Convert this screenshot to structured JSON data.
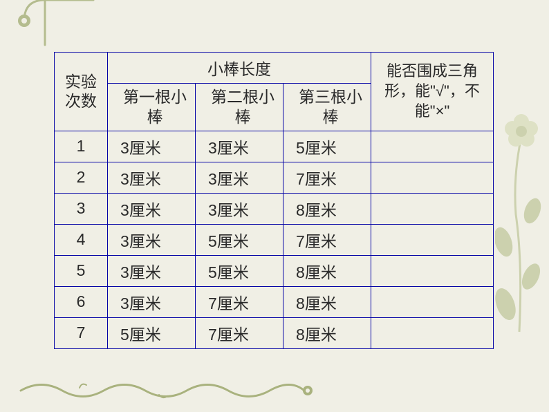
{
  "table": {
    "border_color": "#0504a6",
    "text_color": "#2a2a2a",
    "background_color": "#f0efe5",
    "font_size": 23,
    "header": {
      "experiment_count": "实验次数",
      "stick_length": "小棒长度",
      "stick1": "第一根小棒",
      "stick2": "第二根小棒",
      "stick3": "第三根小棒",
      "result": "能否围成三角形，能\"√\"，不能\"×\""
    },
    "rows": [
      {
        "num": "1",
        "s1": "3厘米",
        "s2": "3厘米",
        "s3": "5厘米",
        "result": ""
      },
      {
        "num": "2",
        "s1": "3厘米",
        "s2": "3厘米",
        "s3": "7厘米",
        "result": ""
      },
      {
        "num": "3",
        "s1": "3厘米",
        "s2": "3厘米",
        "s3": "8厘米",
        "result": ""
      },
      {
        "num": "4",
        "s1": "3厘米",
        "s2": "5厘米",
        "s3": "7厘米",
        "result": ""
      },
      {
        "num": "5",
        "s1": "3厘米",
        "s2": "5厘米",
        "s3": "8厘米",
        "result": ""
      },
      {
        "num": "6",
        "s1": "3厘米",
        "s2": "7厘米",
        "s3": "8厘米",
        "result": ""
      },
      {
        "num": "7",
        "s1": "5厘米",
        "s2": "7厘米",
        "s3": "8厘米",
        "result": ""
      }
    ]
  },
  "decorations": {
    "vine_color": "#7a8a3a",
    "flower_color": "#8b9b4a",
    "flower_center": "#bfc88a",
    "dark_accent": "#5a5a2a"
  }
}
